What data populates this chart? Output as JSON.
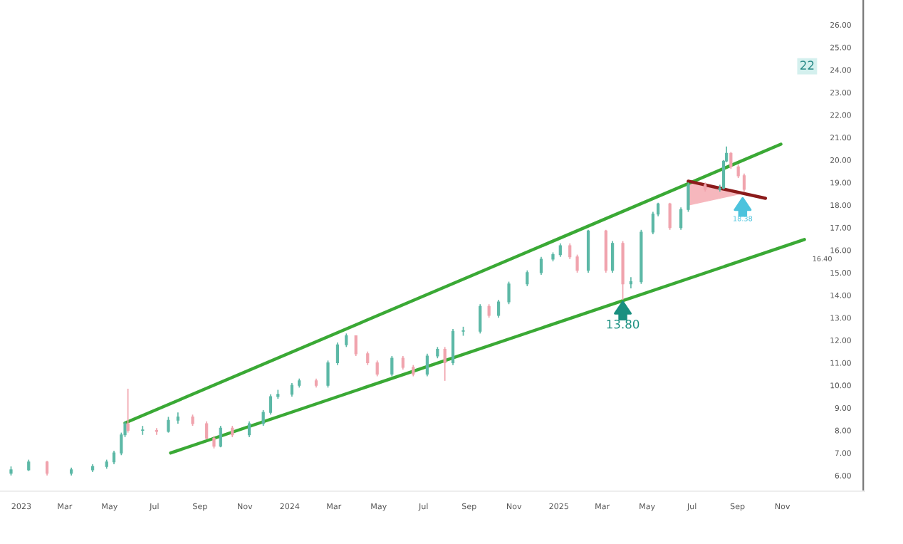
{
  "chart_data": {
    "type": "candlestick",
    "x": [
      "2022-12-18",
      "2023-01-11",
      "2023-02-05",
      "2023-03-10",
      "2023-04-08",
      "2023-04-27",
      "2023-05-07",
      "2023-05-17",
      "2023-05-22",
      "2023-05-26",
      "2023-06-15",
      "2023-07-04",
      "2023-07-20",
      "2023-08-02",
      "2023-08-22",
      "2023-09-10",
      "2023-09-20",
      "2023-09-29",
      "2023-10-15",
      "2023-11-07",
      "2023-11-26",
      "2023-12-06",
      "2023-12-16",
      "2024-01-04",
      "2024-01-14",
      "2024-02-06",
      "2024-02-22",
      "2024-03-06",
      "2024-03-18",
      "2024-03-31",
      "2024-04-16",
      "2024-04-29",
      "2024-05-19",
      "2024-06-03",
      "2024-06-17",
      "2024-07-06",
      "2024-07-20",
      "2024-07-30",
      "2024-08-10",
      "2024-08-24",
      "2024-09-16",
      "2024-09-28",
      "2024-10-11",
      "2024-10-25",
      "2024-11-19",
      "2024-12-08",
      "2024-12-24",
      "2025-01-03",
      "2025-01-16",
      "2025-01-26",
      "2025-02-10",
      "2025-03-06",
      "2025-03-15",
      "2025-03-29",
      "2025-04-09",
      "2025-04-23",
      "2025-05-09",
      "2025-05-16",
      "2025-06-01",
      "2025-06-16",
      "2025-06-26",
      "2025-07-19",
      "2025-08-08",
      "2025-08-13",
      "2025-08-17",
      "2025-08-23",
      "2025-09-02",
      "2025-09-10"
    ],
    "ohlc": [
      [
        6.1,
        6.4,
        6.0,
        6.25
      ],
      [
        6.25,
        6.7,
        6.2,
        6.6
      ],
      [
        6.6,
        6.65,
        6.0,
        6.1
      ],
      [
        6.1,
        6.35,
        6.0,
        6.25
      ],
      [
        6.25,
        6.5,
        6.15,
        6.4
      ],
      [
        6.4,
        6.7,
        6.3,
        6.6
      ],
      [
        6.6,
        7.1,
        6.5,
        7.0
      ],
      [
        7.0,
        7.9,
        6.9,
        7.8
      ],
      [
        7.8,
        8.4,
        7.7,
        8.3
      ],
      [
        8.3,
        9.85,
        7.9,
        8.0
      ],
      [
        8.0,
        8.2,
        7.8,
        8.0
      ],
      [
        8.0,
        8.1,
        7.8,
        7.95
      ],
      [
        7.95,
        8.6,
        7.9,
        8.45
      ],
      [
        8.45,
        8.8,
        8.3,
        8.6
      ],
      [
        8.6,
        8.7,
        8.2,
        8.3
      ],
      [
        8.3,
        8.4,
        7.6,
        7.65
      ],
      [
        7.65,
        7.75,
        7.2,
        7.3
      ],
      [
        7.3,
        8.2,
        7.25,
        8.1
      ],
      [
        8.1,
        8.2,
        7.7,
        7.8
      ],
      [
        7.8,
        8.4,
        7.7,
        8.3
      ],
      [
        8.3,
        8.9,
        8.2,
        8.8
      ],
      [
        8.8,
        9.6,
        8.7,
        9.5
      ],
      [
        9.5,
        9.8,
        9.4,
        9.6
      ],
      [
        9.6,
        10.1,
        9.5,
        10.0
      ],
      [
        10.0,
        10.3,
        9.9,
        10.2
      ],
      [
        10.2,
        10.3,
        9.9,
        10.0
      ],
      [
        10.0,
        11.1,
        9.9,
        11.0
      ],
      [
        11.0,
        11.9,
        10.9,
        11.8
      ],
      [
        11.8,
        12.3,
        11.7,
        12.2
      ],
      [
        12.2,
        12.2,
        11.3,
        11.4
      ],
      [
        11.4,
        11.5,
        10.9,
        11.0
      ],
      [
        11.0,
        11.1,
        10.4,
        10.5
      ],
      [
        10.5,
        11.3,
        10.4,
        11.2
      ],
      [
        11.2,
        11.3,
        10.7,
        10.8
      ],
      [
        10.8,
        10.9,
        10.4,
        10.5
      ],
      [
        10.5,
        11.4,
        10.4,
        11.3
      ],
      [
        11.3,
        11.7,
        11.2,
        11.6
      ],
      [
        11.6,
        11.7,
        10.2,
        11.0
      ],
      [
        11.0,
        12.5,
        10.9,
        12.4
      ],
      [
        12.4,
        12.6,
        12.2,
        12.4
      ],
      [
        12.4,
        13.6,
        12.3,
        13.5
      ],
      [
        13.5,
        13.6,
        13.0,
        13.1
      ],
      [
        13.1,
        13.8,
        13.0,
        13.7
      ],
      [
        13.7,
        14.6,
        13.6,
        14.5
      ],
      [
        14.5,
        15.1,
        14.4,
        15.0
      ],
      [
        15.0,
        15.7,
        14.9,
        15.6
      ],
      [
        15.6,
        15.9,
        15.5,
        15.8
      ],
      [
        15.8,
        16.3,
        15.7,
        16.2
      ],
      [
        16.2,
        16.3,
        15.6,
        15.7
      ],
      [
        15.7,
        15.8,
        15.0,
        15.1
      ],
      [
        15.1,
        16.9,
        15.0,
        16.85
      ],
      [
        16.85,
        16.9,
        15.0,
        15.1
      ],
      [
        15.1,
        16.4,
        15.0,
        16.3
      ],
      [
        16.3,
        16.4,
        13.8,
        14.5
      ],
      [
        14.5,
        14.8,
        14.3,
        14.6
      ],
      [
        14.6,
        16.9,
        14.5,
        16.8
      ],
      [
        16.8,
        17.7,
        16.7,
        17.6
      ],
      [
        17.6,
        18.1,
        17.5,
        18.05
      ],
      [
        18.05,
        18.1,
        16.9,
        17.0
      ],
      [
        17.0,
        17.9,
        16.9,
        17.8
      ],
      [
        17.8,
        19.0,
        17.7,
        18.9
      ],
      [
        18.9,
        19.0,
        18.6,
        18.7
      ],
      [
        18.7,
        18.9,
        18.6,
        18.75
      ],
      [
        18.75,
        20.0,
        18.7,
        19.95
      ],
      [
        19.95,
        20.6,
        19.9,
        20.3
      ],
      [
        20.3,
        20.35,
        19.6,
        19.7
      ],
      [
        19.7,
        19.8,
        19.2,
        19.3
      ],
      [
        19.3,
        19.4,
        18.6,
        18.7
      ]
    ],
    "colors": [
      "#5cb8a6",
      "#5cb8a6",
      "#f0a3ad",
      "#5cb8a6",
      "#5cb8a6",
      "#5cb8a6",
      "#5cb8a6",
      "#5cb8a6",
      "#5cb8a6",
      "#f0a3ad",
      "#5cb8a6",
      "#f0a3ad",
      "#5cb8a6",
      "#5cb8a6",
      "#f0a3ad",
      "#f0a3ad",
      "#f0a3ad",
      "#5cb8a6",
      "#f0a3ad",
      "#5cb8a6",
      "#5cb8a6",
      "#5cb8a6",
      "#5cb8a6",
      "#5cb8a6",
      "#5cb8a6",
      "#f0a3ad",
      "#5cb8a6",
      "#5cb8a6",
      "#5cb8a6",
      "#f0a3ad",
      "#f0a3ad",
      "#f0a3ad",
      "#5cb8a6",
      "#f0a3ad",
      "#f0a3ad",
      "#5cb8a6",
      "#5cb8a6",
      "#f0a3ad",
      "#5cb8a6",
      "#5cb8a6",
      "#5cb8a6",
      "#f0a3ad",
      "#5cb8a6",
      "#5cb8a6",
      "#5cb8a6",
      "#5cb8a6",
      "#5cb8a6",
      "#5cb8a6",
      "#f0a3ad",
      "#f0a3ad",
      "#5cb8a6",
      "#f0a3ad",
      "#5cb8a6",
      "#f0a3ad",
      "#5cb8a6",
      "#5cb8a6",
      "#5cb8a6",
      "#5cb8a6",
      "#f0a3ad",
      "#5cb8a6",
      "#5cb8a6",
      "#f0a3ad",
      "#5cb8a6",
      "#5cb8a6",
      "#5cb8a6",
      "#f0a3ad",
      "#f0a3ad",
      "#f0a3ad"
    ],
    "series": [
      {
        "type": "line",
        "color": "#3aa935",
        "x": [
          "2023-05-22",
          "2025-10-30"
        ],
        "values": [
          8.33,
          20.7
        ]
      },
      {
        "type": "line",
        "color": "#3aa935",
        "x": [
          "2023-07-23",
          "2025-12-01"
        ],
        "values": [
          7.0,
          16.47
        ]
      },
      {
        "type": "area",
        "color": "#f4a0a8",
        "x": [
          "2025-06-26",
          "2025-09-05",
          "2025-06-26"
        ],
        "values": [
          19.06,
          18.5,
          18.0
        ]
      },
      {
        "type": "line",
        "color": "#8b1a1a",
        "x": [
          "2025-06-26",
          "2025-10-09"
        ],
        "values": [
          19.06,
          18.3
        ]
      }
    ],
    "annotations": [
      {
        "text": "13.80",
        "x": "2025-03-29",
        "y": 13.8
      },
      {
        "text": "18.38",
        "x": "2025-09-08",
        "y": 18.4
      },
      {
        "text": "16.40",
        "x": "2025-12-01",
        "y": 16.47
      },
      "22"
    ],
    "xlim": [
      "2022-12-03",
      "2026-02-19"
    ],
    "xticks": [
      {
        "value": "2023-01-01",
        "label": "2023"
      },
      {
        "value": "2023-03-01",
        "label": "Mar"
      },
      {
        "value": "2023-05-01",
        "label": "May"
      },
      {
        "value": "2023-07-01",
        "label": "Jul"
      },
      {
        "value": "2023-09-01",
        "label": "Sep"
      },
      {
        "value": "2023-11-01",
        "label": "Nov"
      },
      {
        "value": "2024-01-01",
        "label": "2024"
      },
      {
        "value": "2024-03-01",
        "label": "Mar"
      },
      {
        "value": "2024-05-01",
        "label": "May"
      },
      {
        "value": "2024-07-01",
        "label": "Jul"
      },
      {
        "value": "2024-09-01",
        "label": "Sep"
      },
      {
        "value": "2024-11-01",
        "label": "Nov"
      },
      {
        "value": "2025-01-01",
        "label": "2025"
      },
      {
        "value": "2025-03-01",
        "label": "Mar"
      },
      {
        "value": "2025-05-01",
        "label": "May"
      },
      {
        "value": "2025-07-01",
        "label": "Jul"
      },
      {
        "value": "2025-09-01",
        "label": "Sep"
      },
      {
        "value": "2025-11-01",
        "label": "Nov"
      }
    ],
    "ylim": [
      5.3,
      27.1
    ],
    "yticks": [
      {
        "value": 6,
        "label": "6.00"
      },
      {
        "value": 7,
        "label": "7.00"
      },
      {
        "value": 8,
        "label": "8.00"
      },
      {
        "value": 9,
        "label": "9.00"
      },
      {
        "value": 10,
        "label": "10.00"
      },
      {
        "value": 11,
        "label": "11.00"
      },
      {
        "value": 12,
        "label": "12.00"
      },
      {
        "value": 13,
        "label": "13.00"
      },
      {
        "value": 14,
        "label": "14.00"
      },
      {
        "value": 15,
        "label": "15.00"
      },
      {
        "value": 16,
        "label": "16.00"
      },
      {
        "value": 17,
        "label": "17.00"
      },
      {
        "value": 18,
        "label": "18.00"
      },
      {
        "value": 19,
        "label": "19.00"
      },
      {
        "value": 20,
        "label": "20.00"
      },
      {
        "value": 21,
        "label": "21.00"
      },
      {
        "value": 22,
        "label": "22.00"
      },
      {
        "value": 23,
        "label": "23.00"
      },
      {
        "value": 24,
        "label": "24.00"
      },
      {
        "value": 25,
        "label": "25.00"
      },
      {
        "value": 26,
        "label": "26.00"
      }
    ],
    "grid": false
  }
}
